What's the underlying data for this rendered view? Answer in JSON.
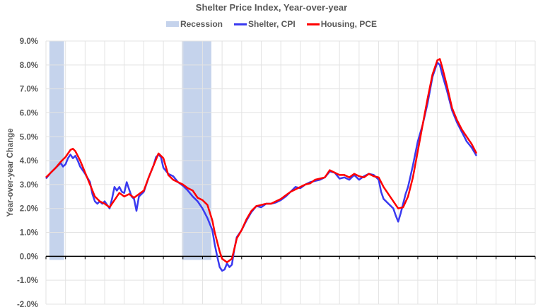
{
  "chart_data": {
    "type": "line",
    "title": "Shelter Price Index, Year-over-year",
    "xlabel": "",
    "ylabel": "Year-over-year Change",
    "ylim": [
      -2.0,
      9.0
    ],
    "yticks": [
      "9.0%",
      "8.0%",
      "7.0%",
      "6.0%",
      "5.0%",
      "4.0%",
      "3.0%",
      "2.0%",
      "1.0%",
      "0.0%",
      "-1.0%",
      "-2.0%"
    ],
    "ytick_values": [
      9,
      8,
      7,
      6,
      5,
      4,
      3,
      2,
      1,
      0,
      -1,
      -2
    ],
    "grid": true,
    "legend_position": "top",
    "legend": [
      "Recession",
      "Shelter, CPI",
      "Housing, PCE"
    ],
    "colors": {
      "recession": "#c5d3ec",
      "shelter_cpi": "#3a3af0",
      "housing_pce": "#ff0000",
      "grid": "#e3e3e3",
      "text": "#595959"
    },
    "x_domain_note": "x expressed as fraction (0-1) of plot width; no x-axis labels shown",
    "recessions": [
      [
        0.007,
        0.037
      ],
      [
        0.278,
        0.338
      ]
    ],
    "series": [
      {
        "name": "Shelter, CPI",
        "points": [
          [
            0.0,
            3.25
          ],
          [
            0.01,
            3.5
          ],
          [
            0.02,
            3.7
          ],
          [
            0.03,
            3.9
          ],
          [
            0.035,
            3.75
          ],
          [
            0.04,
            3.85
          ],
          [
            0.045,
            4.1
          ],
          [
            0.05,
            4.25
          ],
          [
            0.055,
            4.1
          ],
          [
            0.06,
            4.2
          ],
          [
            0.065,
            4.0
          ],
          [
            0.07,
            3.75
          ],
          [
            0.08,
            3.45
          ],
          [
            0.09,
            3.1
          ],
          [
            0.095,
            2.6
          ],
          [
            0.1,
            2.3
          ],
          [
            0.105,
            2.2
          ],
          [
            0.11,
            2.3
          ],
          [
            0.115,
            2.2
          ],
          [
            0.12,
            2.3
          ],
          [
            0.125,
            2.15
          ],
          [
            0.13,
            2.0
          ],
          [
            0.135,
            2.4
          ],
          [
            0.14,
            2.9
          ],
          [
            0.145,
            2.75
          ],
          [
            0.15,
            2.9
          ],
          [
            0.155,
            2.7
          ],
          [
            0.16,
            2.65
          ],
          [
            0.165,
            3.1
          ],
          [
            0.17,
            2.8
          ],
          [
            0.175,
            2.5
          ],
          [
            0.18,
            2.4
          ],
          [
            0.185,
            1.9
          ],
          [
            0.19,
            2.5
          ],
          [
            0.2,
            2.7
          ],
          [
            0.21,
            3.3
          ],
          [
            0.22,
            3.8
          ],
          [
            0.225,
            4.15
          ],
          [
            0.23,
            4.25
          ],
          [
            0.235,
            4.15
          ],
          [
            0.24,
            3.7
          ],
          [
            0.25,
            3.45
          ],
          [
            0.26,
            3.35
          ],
          [
            0.27,
            3.1
          ],
          [
            0.28,
            2.95
          ],
          [
            0.29,
            2.75
          ],
          [
            0.3,
            2.5
          ],
          [
            0.31,
            2.3
          ],
          [
            0.32,
            2.0
          ],
          [
            0.33,
            1.6
          ],
          [
            0.34,
            1.1
          ],
          [
            0.345,
            0.5
          ],
          [
            0.35,
            0.0
          ],
          [
            0.355,
            -0.45
          ],
          [
            0.36,
            -0.6
          ],
          [
            0.365,
            -0.55
          ],
          [
            0.37,
            -0.3
          ],
          [
            0.375,
            -0.45
          ],
          [
            0.38,
            -0.35
          ],
          [
            0.385,
            0.3
          ],
          [
            0.39,
            0.8
          ],
          [
            0.4,
            1.1
          ],
          [
            0.41,
            1.5
          ],
          [
            0.42,
            1.85
          ],
          [
            0.43,
            2.1
          ],
          [
            0.44,
            2.05
          ],
          [
            0.45,
            2.2
          ],
          [
            0.46,
            2.2
          ],
          [
            0.47,
            2.25
          ],
          [
            0.48,
            2.35
          ],
          [
            0.49,
            2.5
          ],
          [
            0.5,
            2.7
          ],
          [
            0.51,
            2.9
          ],
          [
            0.52,
            2.85
          ],
          [
            0.53,
            3.0
          ],
          [
            0.54,
            3.1
          ],
          [
            0.55,
            3.15
          ],
          [
            0.56,
            3.2
          ],
          [
            0.57,
            3.3
          ],
          [
            0.58,
            3.55
          ],
          [
            0.59,
            3.5
          ],
          [
            0.6,
            3.25
          ],
          [
            0.61,
            3.3
          ],
          [
            0.62,
            3.2
          ],
          [
            0.63,
            3.4
          ],
          [
            0.64,
            3.2
          ],
          [
            0.65,
            3.35
          ],
          [
            0.66,
            3.45
          ],
          [
            0.67,
            3.4
          ],
          [
            0.68,
            3.2
          ],
          [
            0.685,
            2.7
          ],
          [
            0.69,
            2.4
          ],
          [
            0.7,
            2.2
          ],
          [
            0.71,
            2.0
          ],
          [
            0.715,
            1.7
          ],
          [
            0.72,
            1.45
          ],
          [
            0.725,
            1.8
          ],
          [
            0.73,
            2.2
          ],
          [
            0.735,
            2.6
          ],
          [
            0.74,
            2.9
          ],
          [
            0.75,
            3.8
          ],
          [
            0.76,
            4.8
          ],
          [
            0.77,
            5.5
          ],
          [
            0.78,
            6.4
          ],
          [
            0.79,
            7.5
          ],
          [
            0.8,
            8.1
          ],
          [
            0.805,
            8.0
          ],
          [
            0.81,
            7.6
          ],
          [
            0.82,
            6.9
          ],
          [
            0.83,
            6.1
          ],
          [
            0.84,
            5.6
          ],
          [
            0.85,
            5.2
          ],
          [
            0.855,
            5.0
          ],
          [
            0.86,
            4.8
          ],
          [
            0.87,
            4.55
          ],
          [
            0.88,
            4.2
          ]
        ]
      },
      {
        "name": "Housing, PCE",
        "points": [
          [
            0.0,
            3.3
          ],
          [
            0.01,
            3.5
          ],
          [
            0.02,
            3.7
          ],
          [
            0.03,
            3.95
          ],
          [
            0.04,
            4.15
          ],
          [
            0.05,
            4.45
          ],
          [
            0.055,
            4.5
          ],
          [
            0.06,
            4.4
          ],
          [
            0.07,
            4.0
          ],
          [
            0.08,
            3.5
          ],
          [
            0.09,
            3.0
          ],
          [
            0.1,
            2.5
          ],
          [
            0.11,
            2.3
          ],
          [
            0.12,
            2.2
          ],
          [
            0.13,
            2.05
          ],
          [
            0.14,
            2.35
          ],
          [
            0.15,
            2.65
          ],
          [
            0.16,
            2.5
          ],
          [
            0.17,
            2.6
          ],
          [
            0.18,
            2.45
          ],
          [
            0.19,
            2.6
          ],
          [
            0.2,
            2.75
          ],
          [
            0.21,
            3.3
          ],
          [
            0.22,
            3.8
          ],
          [
            0.23,
            4.3
          ],
          [
            0.24,
            4.1
          ],
          [
            0.25,
            3.4
          ],
          [
            0.26,
            3.2
          ],
          [
            0.27,
            3.1
          ],
          [
            0.28,
            3.0
          ],
          [
            0.29,
            2.85
          ],
          [
            0.3,
            2.75
          ],
          [
            0.31,
            2.45
          ],
          [
            0.32,
            2.35
          ],
          [
            0.33,
            2.15
          ],
          [
            0.34,
            1.5
          ],
          [
            0.345,
            1.0
          ],
          [
            0.35,
            0.6
          ],
          [
            0.355,
            0.2
          ],
          [
            0.36,
            -0.1
          ],
          [
            0.37,
            -0.25
          ],
          [
            0.38,
            -0.1
          ],
          [
            0.385,
            0.3
          ],
          [
            0.39,
            0.75
          ],
          [
            0.4,
            1.1
          ],
          [
            0.41,
            1.55
          ],
          [
            0.42,
            1.9
          ],
          [
            0.43,
            2.1
          ],
          [
            0.44,
            2.15
          ],
          [
            0.45,
            2.2
          ],
          [
            0.46,
            2.2
          ],
          [
            0.47,
            2.3
          ],
          [
            0.48,
            2.4
          ],
          [
            0.49,
            2.55
          ],
          [
            0.5,
            2.7
          ],
          [
            0.51,
            2.8
          ],
          [
            0.52,
            2.9
          ],
          [
            0.53,
            3.0
          ],
          [
            0.54,
            3.05
          ],
          [
            0.55,
            3.2
          ],
          [
            0.56,
            3.25
          ],
          [
            0.57,
            3.3
          ],
          [
            0.58,
            3.6
          ],
          [
            0.59,
            3.5
          ],
          [
            0.6,
            3.4
          ],
          [
            0.61,
            3.4
          ],
          [
            0.62,
            3.3
          ],
          [
            0.63,
            3.45
          ],
          [
            0.64,
            3.35
          ],
          [
            0.65,
            3.3
          ],
          [
            0.66,
            3.45
          ],
          [
            0.67,
            3.35
          ],
          [
            0.68,
            3.3
          ],
          [
            0.69,
            2.9
          ],
          [
            0.7,
            2.6
          ],
          [
            0.71,
            2.3
          ],
          [
            0.72,
            2.0
          ],
          [
            0.73,
            2.05
          ],
          [
            0.74,
            2.5
          ],
          [
            0.75,
            3.3
          ],
          [
            0.76,
            4.4
          ],
          [
            0.77,
            5.5
          ],
          [
            0.78,
            6.6
          ],
          [
            0.79,
            7.6
          ],
          [
            0.8,
            8.2
          ],
          [
            0.805,
            8.25
          ],
          [
            0.81,
            7.9
          ],
          [
            0.82,
            7.1
          ],
          [
            0.83,
            6.2
          ],
          [
            0.84,
            5.7
          ],
          [
            0.85,
            5.3
          ],
          [
            0.86,
            5.0
          ],
          [
            0.87,
            4.7
          ],
          [
            0.88,
            4.3
          ]
        ]
      }
    ]
  }
}
